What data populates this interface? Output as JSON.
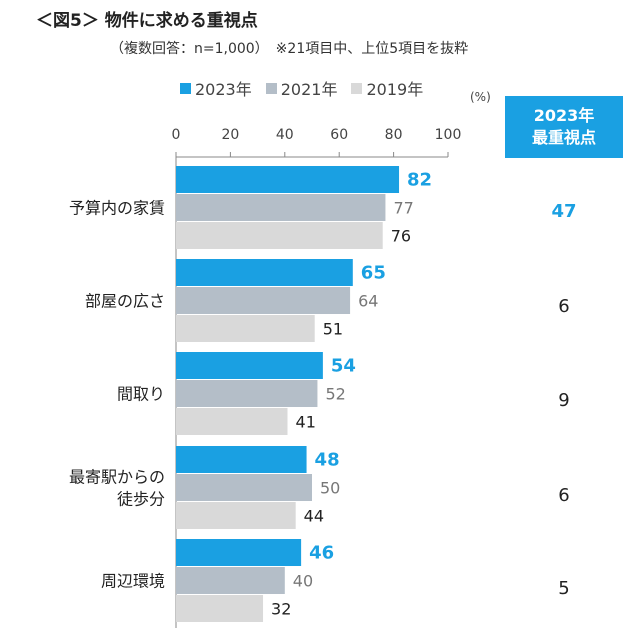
{
  "header": {
    "title": "＜図5＞ 物件に求める重視点",
    "subtitle": "（複数回答：n=1,000）　※21項目中、上位5項目を抜粋"
  },
  "legend": [
    {
      "label": "2023年",
      "color": "#1aa0e2"
    },
    {
      "label": "2021年",
      "color": "#b4bec8"
    },
    {
      "label": "2019年",
      "color": "#d9d9d9"
    }
  ],
  "unit_label": "(%)",
  "top_priority": {
    "header_line1": "2023年",
    "header_line2": "最重視点",
    "values": [
      "47",
      "6",
      "9",
      "6",
      "5"
    ]
  },
  "chart_data": {
    "type": "bar",
    "orientation": "horizontal",
    "title": "＜図5＞ 物件に求める重視点",
    "categories": [
      [
        "予算内の家賃"
      ],
      [
        "部屋の広さ"
      ],
      [
        "間取り"
      ],
      [
        "最寄駅からの",
        "徒歩分"
      ],
      [
        "周辺環境"
      ]
    ],
    "series": [
      {
        "name": "2023年",
        "color": "#1aa0e2",
        "label_color": "#1aa0e2",
        "label_bold": true,
        "values": [
          82,
          65,
          54,
          48,
          46
        ]
      },
      {
        "name": "2021年",
        "color": "#b4bec8",
        "label_color": "#777777",
        "label_bold": false,
        "values": [
          77,
          64,
          52,
          50,
          40
        ]
      },
      {
        "name": "2019年",
        "color": "#d9d9d9",
        "label_color": "#222222",
        "label_bold": false,
        "values": [
          76,
          51,
          41,
          44,
          32
        ]
      }
    ],
    "xlim": [
      0,
      100
    ],
    "xticks": [
      "0",
      "20",
      "40",
      "60",
      "80",
      "100"
    ],
    "xlabel": "",
    "ylabel": "(%)"
  }
}
